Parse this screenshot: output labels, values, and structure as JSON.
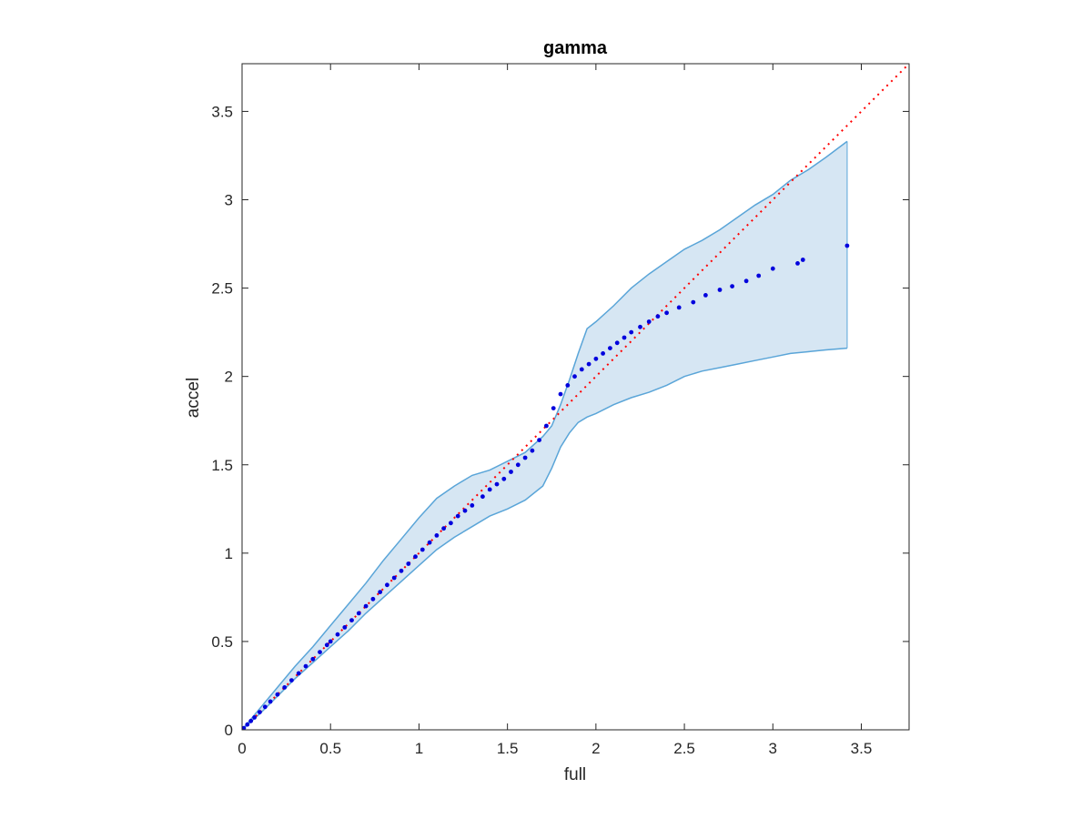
{
  "chart_data": {
    "type": "scatter",
    "title": "gamma",
    "xlabel": "full",
    "ylabel": "accel",
    "xlim": [
      0,
      3.77
    ],
    "ylim": [
      0,
      3.77
    ],
    "grid": false,
    "x_ticks": [
      0,
      0.5,
      1,
      1.5,
      2,
      2.5,
      3,
      3.5
    ],
    "x_tick_labels": [
      "0",
      "0.5",
      "1",
      "1.5",
      "2",
      "2.5",
      "3",
      "3.5"
    ],
    "y_ticks": [
      0,
      0.5,
      1,
      1.5,
      2,
      2.5,
      3,
      3.5
    ],
    "y_tick_labels": [
      "0",
      "0.5",
      "1",
      "1.5",
      "2",
      "2.5",
      "3",
      "3.5"
    ],
    "reference_line": {
      "x": [
        0,
        3.77
      ],
      "y": [
        0,
        3.77
      ],
      "color": "#ff0000",
      "style": "dotted"
    },
    "band": {
      "color": "#5aa5d8",
      "fill": "#d6e6f3",
      "upper": {
        "x": [
          0,
          0.1,
          0.2,
          0.3,
          0.4,
          0.5,
          0.6,
          0.7,
          0.8,
          0.9,
          1.0,
          1.1,
          1.2,
          1.3,
          1.4,
          1.5,
          1.6,
          1.7,
          1.75,
          1.8,
          1.85,
          1.9,
          1.95,
          2.0,
          2.1,
          2.2,
          2.3,
          2.4,
          2.5,
          2.6,
          2.7,
          2.8,
          2.9,
          3.0,
          3.1,
          3.2,
          3.3,
          3.42
        ],
        "y": [
          0,
          0.12,
          0.24,
          0.36,
          0.47,
          0.59,
          0.71,
          0.83,
          0.96,
          1.08,
          1.2,
          1.31,
          1.38,
          1.44,
          1.47,
          1.52,
          1.57,
          1.66,
          1.72,
          1.84,
          1.98,
          2.13,
          2.27,
          2.31,
          2.4,
          2.5,
          2.58,
          2.65,
          2.72,
          2.77,
          2.83,
          2.9,
          2.97,
          3.03,
          3.11,
          3.17,
          3.24,
          3.33
        ]
      },
      "lower": {
        "x": [
          0,
          0.1,
          0.2,
          0.3,
          0.4,
          0.5,
          0.6,
          0.7,
          0.8,
          0.9,
          1.0,
          1.1,
          1.2,
          1.3,
          1.4,
          1.5,
          1.6,
          1.7,
          1.75,
          1.8,
          1.85,
          1.9,
          1.95,
          2.0,
          2.1,
          2.2,
          2.3,
          2.4,
          2.5,
          2.6,
          2.7,
          2.8,
          2.9,
          3.0,
          3.1,
          3.2,
          3.3,
          3.42
        ],
        "y": [
          0,
          0.09,
          0.19,
          0.29,
          0.38,
          0.47,
          0.56,
          0.66,
          0.75,
          0.84,
          0.93,
          1.02,
          1.09,
          1.15,
          1.21,
          1.25,
          1.3,
          1.38,
          1.48,
          1.6,
          1.68,
          1.74,
          1.77,
          1.79,
          1.84,
          1.88,
          1.91,
          1.95,
          2.0,
          2.03,
          2.05,
          2.07,
          2.09,
          2.11,
          2.13,
          2.14,
          2.15,
          2.16
        ]
      }
    },
    "series": [
      {
        "color": "#0000dd",
        "x": [
          0.01,
          0.03,
          0.05,
          0.07,
          0.1,
          0.13,
          0.16,
          0.2,
          0.24,
          0.28,
          0.32,
          0.36,
          0.4,
          0.44,
          0.48,
          0.5,
          0.54,
          0.58,
          0.62,
          0.66,
          0.7,
          0.74,
          0.78,
          0.82,
          0.86,
          0.9,
          0.94,
          0.98,
          1.02,
          1.06,
          1.1,
          1.14,
          1.18,
          1.22,
          1.26,
          1.3,
          1.36,
          1.4,
          1.44,
          1.48,
          1.52,
          1.56,
          1.6,
          1.64,
          1.68,
          1.72,
          1.76,
          1.8,
          1.84,
          1.88,
          1.92,
          1.96,
          2.0,
          2.04,
          2.08,
          2.12,
          2.16,
          2.2,
          2.25,
          2.3,
          2.35,
          2.4,
          2.47,
          2.55,
          2.62,
          2.7,
          2.77,
          2.85,
          2.92,
          3.0,
          3.14,
          3.17,
          3.42
        ],
        "y": [
          0.01,
          0.03,
          0.05,
          0.07,
          0.1,
          0.13,
          0.16,
          0.2,
          0.24,
          0.28,
          0.32,
          0.36,
          0.4,
          0.44,
          0.48,
          0.5,
          0.54,
          0.58,
          0.62,
          0.66,
          0.7,
          0.74,
          0.78,
          0.82,
          0.86,
          0.9,
          0.94,
          0.98,
          1.02,
          1.06,
          1.1,
          1.14,
          1.17,
          1.21,
          1.24,
          1.27,
          1.32,
          1.36,
          1.39,
          1.42,
          1.46,
          1.5,
          1.54,
          1.58,
          1.64,
          1.72,
          1.82,
          1.9,
          1.95,
          2.0,
          2.04,
          2.07,
          2.1,
          2.13,
          2.16,
          2.19,
          2.22,
          2.25,
          2.28,
          2.31,
          2.34,
          2.36,
          2.39,
          2.42,
          2.46,
          2.49,
          2.51,
          2.54,
          2.57,
          2.61,
          2.64,
          2.66,
          2.74
        ]
      }
    ]
  }
}
